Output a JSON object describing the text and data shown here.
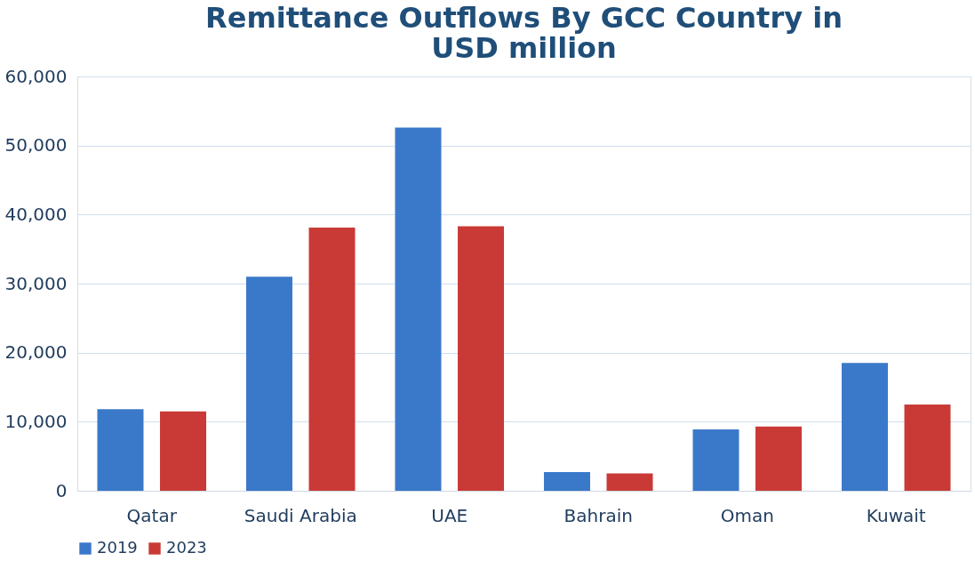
{
  "chart_data": {
    "type": "bar",
    "title": [
      "Remittance Outflows By GCC Country in",
      "USD million"
    ],
    "categories": [
      "Qatar",
      "Saudi Arabia",
      "UAE",
      "Bahrain",
      "Oman",
      "Kuwait"
    ],
    "series": [
      {
        "name": "2019",
        "color": "#3a78c9",
        "values": [
          11800,
          31000,
          52600,
          2700,
          8900,
          18500
        ]
      },
      {
        "name": "2023",
        "color": "#c93a36",
        "values": [
          11500,
          38100,
          38300,
          2500,
          9300,
          12500
        ]
      }
    ],
    "ylim": [
      0,
      60000
    ],
    "yticks": [
      0,
      {
        "value": 10000,
        "label": "10,000"
      },
      {
        "value": 20000,
        "label": "20,000"
      },
      {
        "value": 30000,
        "label": "30,000"
      },
      {
        "value": 40000,
        "label": "40,000"
      },
      {
        "value": 50000,
        "label": "50,000"
      },
      {
        "value": 60000,
        "label": "60,000"
      }
    ],
    "grid": "y",
    "legend": "bottom"
  }
}
